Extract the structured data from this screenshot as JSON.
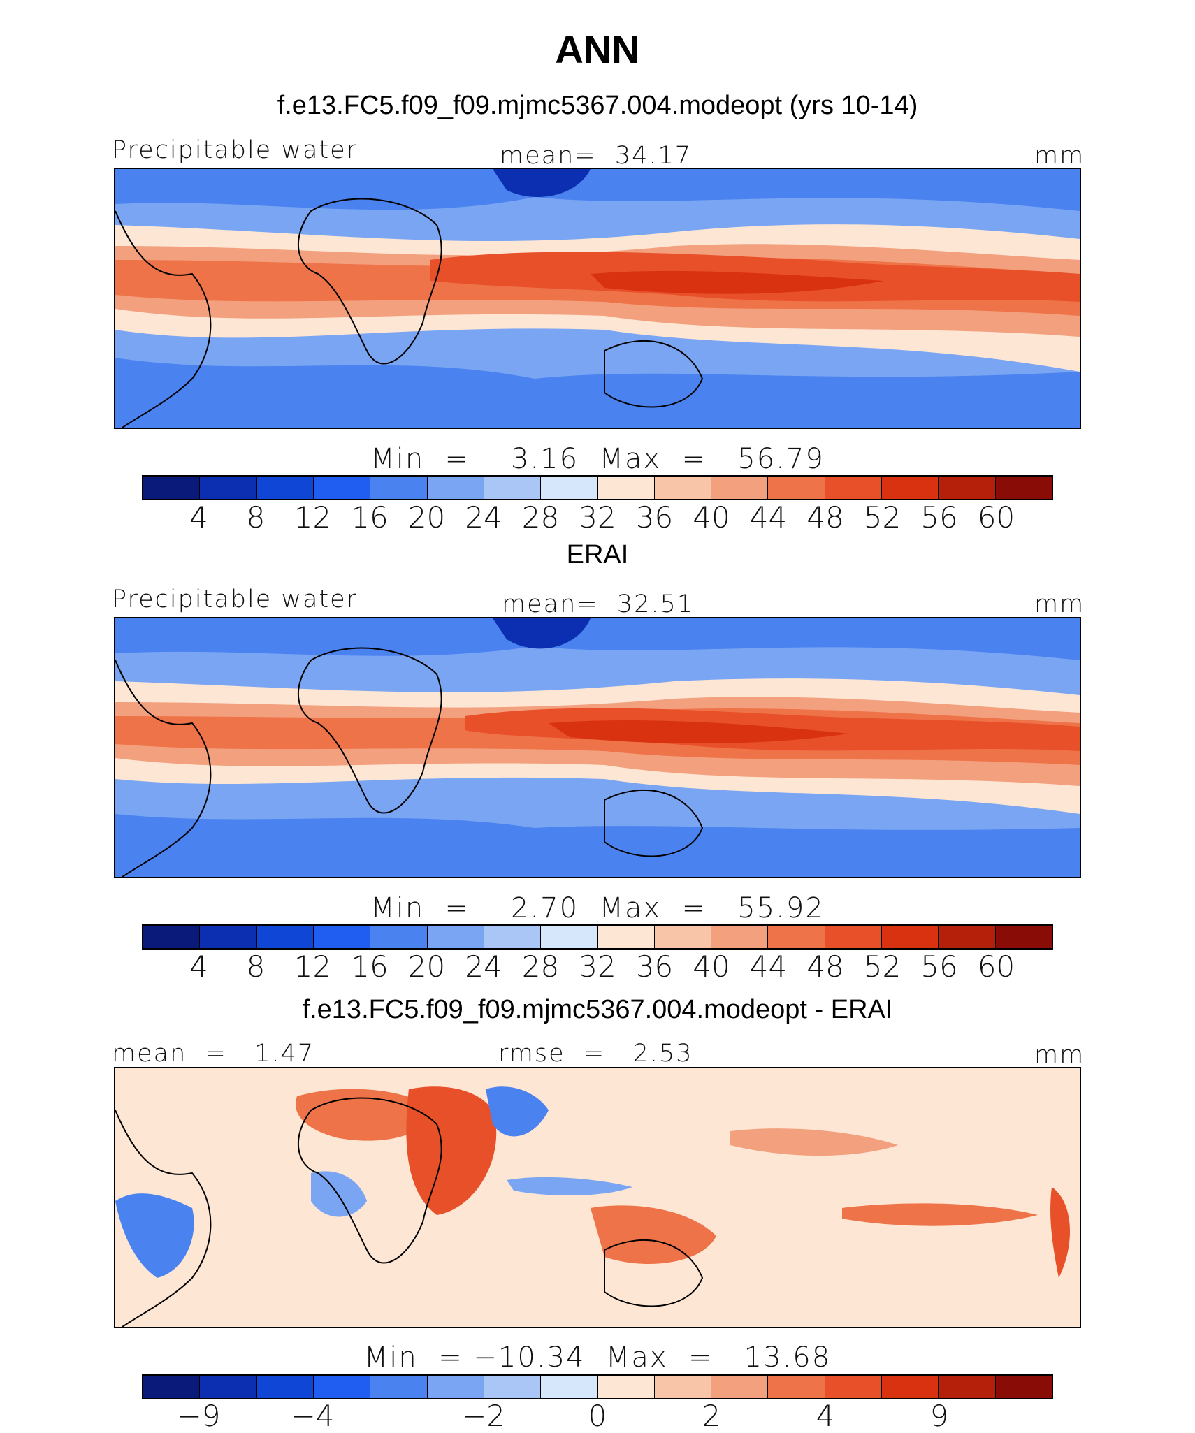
{
  "title": "ANN",
  "colors": {
    "field": [
      "#0a1a7a",
      "#0b2fb0",
      "#0f46d6",
      "#1f5ef0",
      "#4a82f0",
      "#7aa5f3",
      "#a9c6f6",
      "#d6e6fb",
      "#fde6d4",
      "#f8c5a8",
      "#f3a07e",
      "#ee7349",
      "#e8502a",
      "#d93210",
      "#b4200a",
      "#8a0c06"
    ],
    "diff": [
      "#0a1a7a",
      "#0b2fb0",
      "#0f46d6",
      "#1f5ef0",
      "#4a82f0",
      "#7aa5f3",
      "#a9c6f6",
      "#d6e6fb",
      "#fde6d4",
      "#f8c5a8",
      "#f3a07e",
      "#ee7349",
      "#e8502a",
      "#d93210",
      "#b4200a",
      "#8a0c06"
    ]
  },
  "panels": [
    {
      "heading": "f.e13.FC5.f09_f09.mjmc5367.004.modeopt (yrs 10-14)",
      "left_label": "Precipitable water",
      "center_label": "mean=  34.17",
      "right_label": "mm",
      "minmax": "Min  =    3.16  Max  =   56.79",
      "ticks": [
        "4",
        "8",
        "12",
        "16",
        "20",
        "24",
        "28",
        "32",
        "36",
        "40",
        "44",
        "48",
        "52",
        "56",
        "60"
      ]
    },
    {
      "heading": "ERAI",
      "left_label": "Precipitable water",
      "center_label": "mean=  32.51",
      "right_label": "mm",
      "minmax": "Min  =    2.70  Max  =   55.92",
      "ticks": [
        "4",
        "8",
        "12",
        "16",
        "20",
        "24",
        "28",
        "32",
        "36",
        "40",
        "44",
        "48",
        "52",
        "56",
        "60"
      ]
    },
    {
      "heading": "f.e13.FC5.f09_f09.mjmc5367.004.modeopt - ERAI",
      "left_label": "mean  =   1.47",
      "center_label": "rmse  =   2.53",
      "right_label": "mm",
      "minmax": "Min  = −10.34  Max  =   13.68",
      "ticks": [
        "−9",
        "−4",
        "−2",
        "0",
        "2",
        "4",
        "9"
      ]
    }
  ]
}
